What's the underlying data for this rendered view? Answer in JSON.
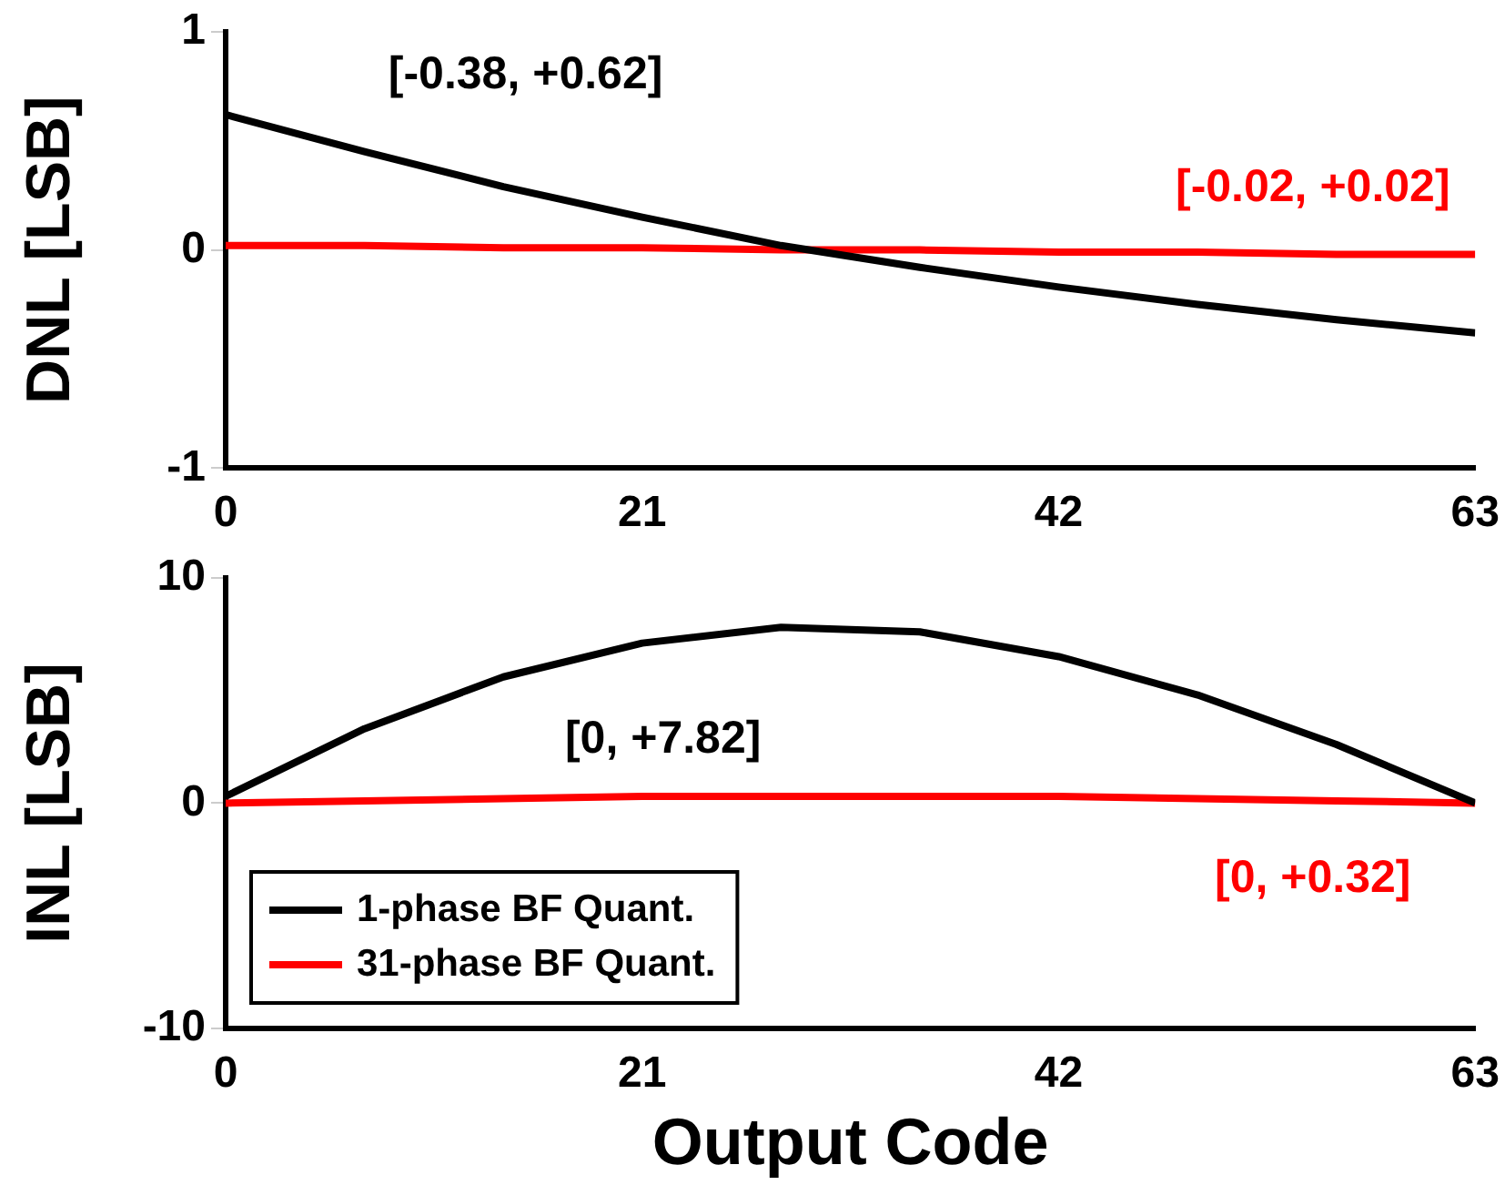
{
  "chart_data": [
    {
      "type": "line",
      "ylabel": "DNL [LSB]",
      "x": [
        0,
        7,
        14,
        21,
        28,
        35,
        42,
        49,
        56,
        63
      ],
      "xlim": [
        0,
        63
      ],
      "xticks": [
        0,
        21,
        42,
        63
      ],
      "ylim": [
        -1,
        1
      ],
      "yticks": [
        -1,
        0,
        1
      ],
      "grid": false,
      "marker": "none",
      "line_style": "solid",
      "series": [
        {
          "color": "#000000",
          "values": [
            0.62,
            0.45,
            0.29,
            0.15,
            0.02,
            -0.08,
            -0.17,
            -0.25,
            -0.32,
            -0.38
          ]
        },
        {
          "color": "#ff0000",
          "values": [
            0.02,
            0.02,
            0.01,
            0.01,
            0,
            0,
            -0.01,
            -0.01,
            -0.02,
            -0.02
          ]
        }
      ],
      "annotations": [
        "[-0.38, +0.62]",
        "[-0.02, +0.02]"
      ]
    },
    {
      "type": "line",
      "ylabel": "INL [LSB]",
      "xlabel": "Output Code",
      "x": [
        0,
        7,
        14,
        21,
        28,
        35,
        42,
        49,
        56,
        63
      ],
      "xlim": [
        0,
        63
      ],
      "xticks": [
        0,
        21,
        42,
        63
      ],
      "ylim": [
        -10,
        10
      ],
      "yticks": [
        -10,
        0,
        10
      ],
      "grid": false,
      "marker": "none",
      "line_style": "solid",
      "legend": "bottom left",
      "series": [
        {
          "name": "1-phase BF Quant.",
          "color": "#000000",
          "values": [
            0.3,
            3.3,
            5.6,
            7.1,
            7.8,
            7.6,
            6.5,
            4.8,
            2.6,
            0
          ]
        },
        {
          "name": "31-phase BF Quant.",
          "color": "#ff0000",
          "values": [
            0,
            0.1,
            0.2,
            0.3,
            0.3,
            0.3,
            0.3,
            0.2,
            0.1,
            0
          ]
        }
      ],
      "annotations": [
        "[0, +7.82]",
        "[0, +0.32]"
      ]
    }
  ]
}
